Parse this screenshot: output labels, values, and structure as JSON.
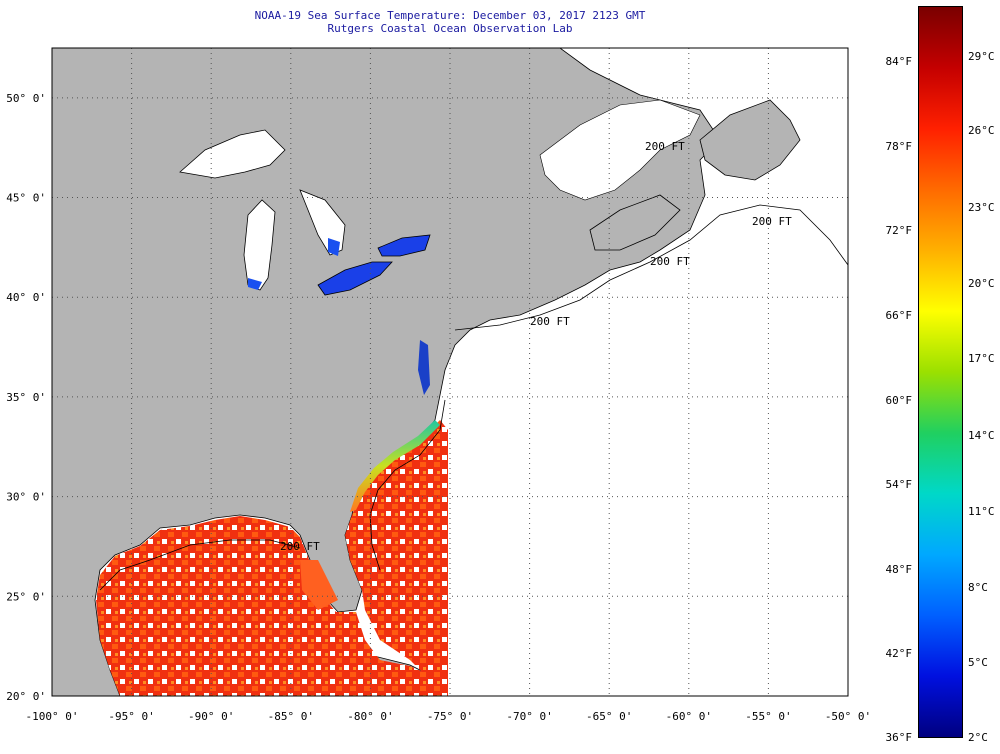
{
  "title": {
    "line1": "NOAA-19 Sea Surface Temperature:  December 03, 2017 2123 GMT",
    "line2": "Rutgers Coastal Ocean Observation Lab"
  },
  "map": {
    "lon_range": [
      -100,
      -50
    ],
    "lat_range": [
      20,
      52.5
    ],
    "lon_labels": [
      "-100° 0'",
      "-95° 0'",
      "-90° 0'",
      "-85° 0'",
      "-80° 0'",
      "-75° 0'",
      "-70° 0'",
      "-65° 0'",
      "-60° 0'",
      "-55° 0'",
      "-50° 0'"
    ],
    "lat_labels": [
      "20° 0'",
      "25° 0'",
      "30° 0'",
      "35° 0'",
      "40° 0'",
      "45° 0'",
      "50° 0'"
    ],
    "contour_labels": [
      "200 FT",
      "200 FT",
      "200 FT",
      "200 FT",
      "200 FT"
    ],
    "colors": {
      "land": "#b4b4b4",
      "no_data": "#ffffff",
      "grid": "#555555"
    }
  },
  "colorbar": {
    "fahrenheit": [
      "84°F",
      "78°F",
      "72°F",
      "66°F",
      "60°F",
      "54°F",
      "48°F",
      "42°F",
      "36°F"
    ],
    "celsius": [
      "29°C",
      "26°C",
      "23°C",
      "20°C",
      "17°C",
      "14°C",
      "11°C",
      "8°C",
      "5°C",
      "2°C"
    ],
    "gradient": [
      "#7a0000",
      "#c40000",
      "#ff2000",
      "#ff6a00",
      "#ffb000",
      "#ffff00",
      "#9be000",
      "#20d060",
      "#00d8c8",
      "#00a8ff",
      "#0060ff",
      "#0010e0",
      "#000080"
    ]
  }
}
